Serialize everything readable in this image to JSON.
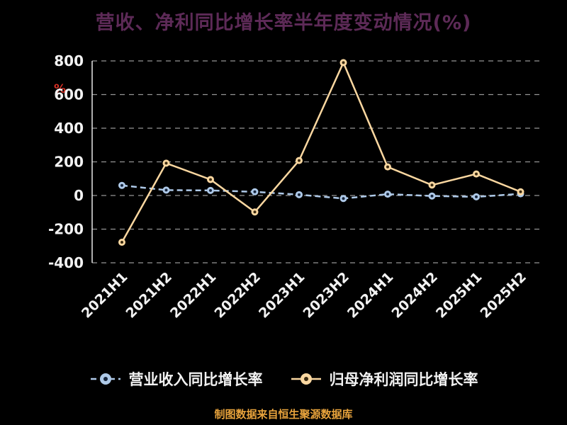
{
  "footer": {
    "text": "制图数据来自恒生聚源数据库"
  },
  "colors": {
    "background": "#000000",
    "title": "#5d2a57",
    "axis_text": "#f2f2f2",
    "grid": "#bbbbbb",
    "axis_line": "#e8e8e8",
    "ylabel": "#d93025",
    "footer": "#e8a33c"
  },
  "chart_data": {
    "type": "line",
    "title": "营收、净利同比增长率半年度变动情况(%)",
    "categories": [
      "2021H1",
      "2021H2",
      "2022H1",
      "2022H2",
      "2023H1",
      "2023H2",
      "2024H1",
      "2024H2",
      "2025H1",
      "2025H2"
    ],
    "series": [
      {
        "name": "营业收入同比增长率",
        "color": "#aec9e8",
        "marker_core": "#16253c",
        "dash": "8 5",
        "values": [
          60,
          32,
          30,
          22,
          5,
          -18,
          8,
          -3,
          -8,
          10
        ]
      },
      {
        "name": "归母净利润同比增长率",
        "color": "#fad7a0",
        "marker_core": "#3a2a10",
        "dash": "",
        "values": [
          -278,
          192,
          95,
          -98,
          208,
          790,
          170,
          62,
          128,
          22
        ]
      }
    ],
    "ylabel": "%",
    "ylim": [
      -400,
      800
    ],
    "ytick_step": 200,
    "yticks": [
      800,
      600,
      400,
      200,
      0,
      -200,
      -400
    ],
    "grid": "horizontal-dashed",
    "legend_position": "bottom"
  }
}
